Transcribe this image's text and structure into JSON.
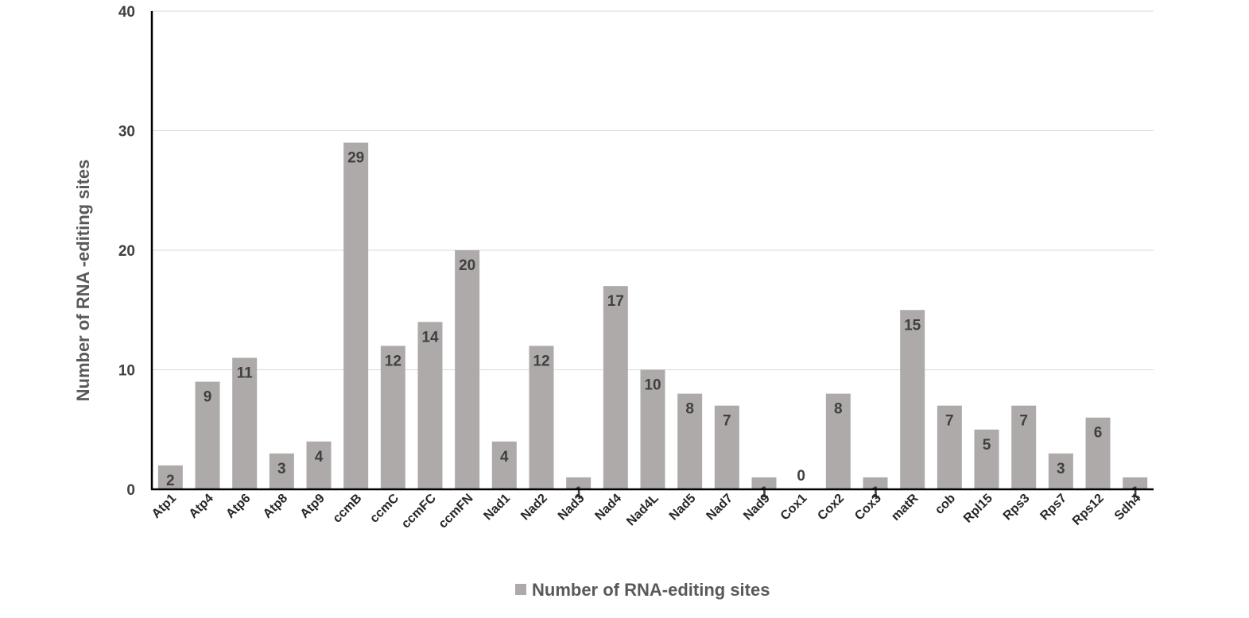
{
  "chart_data": {
    "type": "bar",
    "title": "",
    "xlabel": "",
    "ylabel": "Number of RNA -editing sites",
    "ylim": [
      0,
      40
    ],
    "yticks": [
      0,
      10,
      20,
      30,
      40
    ],
    "grid": true,
    "legend_position": "bottom",
    "categories": [
      "Atp1",
      "Atp4",
      "Atp6",
      "Atp8",
      "Atp9",
      "ccmB",
      "ccmC",
      "ccmFC",
      "ccmFN",
      "Nad1",
      "Nad2",
      "Nad3",
      "Nad4",
      "Nad4L",
      "Nad5",
      "Nad7",
      "Nad9",
      "Cox1",
      "Cox2",
      "Cox3",
      "matR",
      "cob",
      "Rpl15",
      "Rps3",
      "Rps7",
      "Rps12",
      "Sdh4"
    ],
    "series": [
      {
        "name": "Number of RNA-editing sites",
        "color": "#aeaaaa",
        "values": [
          2,
          9,
          11,
          3,
          4,
          29,
          12,
          14,
          20,
          4,
          12,
          1,
          17,
          10,
          8,
          7,
          1,
          0,
          8,
          1,
          15,
          7,
          5,
          7,
          3,
          6,
          1
        ]
      }
    ]
  }
}
